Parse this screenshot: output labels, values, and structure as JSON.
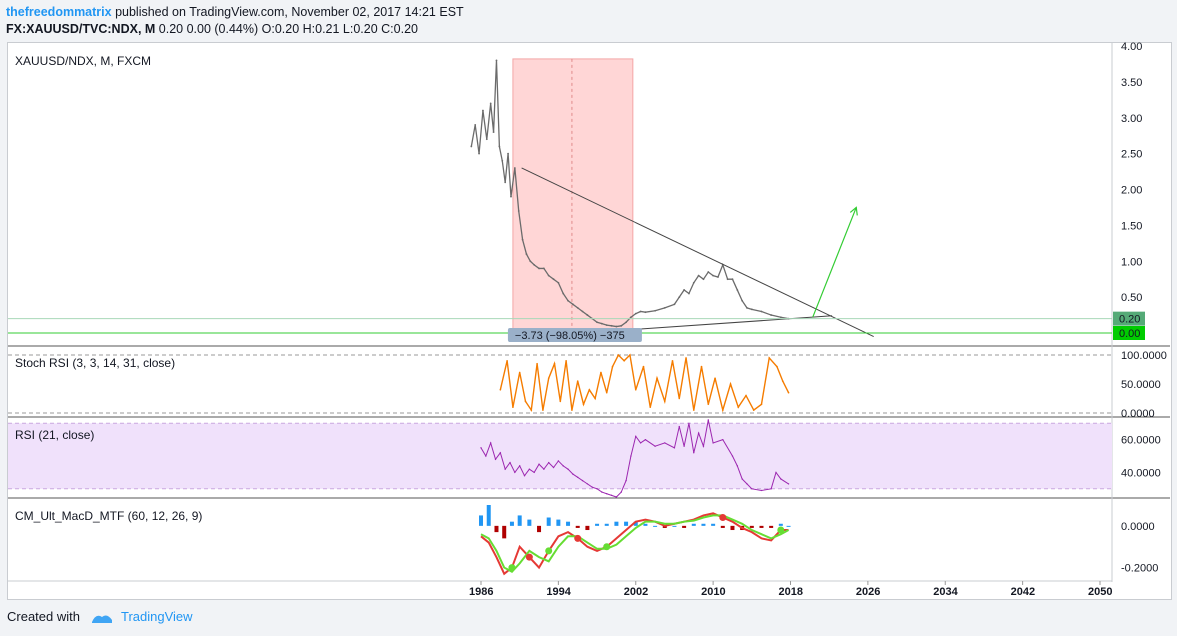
{
  "header": {
    "author": "thefreedommatrix",
    "published": " published on TradingView.com, November 02, 2017 14:21 EST",
    "symbol": "FX:XAUUSD/TVC:NDX, M",
    "ohlc": " 0.20 0.00 (0.44%) O:0.20 H:0.21 L:0.20 C:0.20"
  },
  "footer": {
    "created_with": "Created with",
    "brand": "TradingView"
  },
  "colors": {
    "price_line": "#6b6b6b",
    "range_fill": "#ffd6d6",
    "stoch": "#f57c00",
    "rsi": "#9c27b0",
    "rsi_band": "#f0e1fb",
    "macd_line": "#e53935",
    "macd_signal": "#66dd33",
    "macd_hist_up": "#2196f3",
    "macd_hist_down": "#b00000",
    "support_line": "#33cc33",
    "arrow": "#33cc33",
    "badge_last": "#55aa77",
    "badge_zero": "#00cc00"
  },
  "chart_data": [
    {
      "type": "line",
      "title": "XAUUSD/NDX, M, FXCM",
      "x_ticks": [
        "1986",
        "1994",
        "2002",
        "2010",
        "2018",
        "2026",
        "2034",
        "2042",
        "2050"
      ],
      "y_ticks": [
        "0.00",
        "0.50",
        "1.00",
        "1.50",
        "2.00",
        "2.50",
        "3.00",
        "3.50",
        "4.00"
      ],
      "ylim": [
        0,
        4
      ],
      "xlim": [
        1982.3,
        2050.8
      ],
      "last_value": "0.20",
      "zero_value": "0.00",
      "range_label": "−3.73  (−98.05%)  −375",
      "x": [
        1985.0,
        1985.4,
        1985.8,
        1986.2,
        1986.6,
        1987.0,
        1987.3,
        1987.6,
        1987.9,
        1988.2,
        1988.5,
        1988.8,
        1989.1,
        1989.5,
        1989.9,
        1990.3,
        1990.7,
        1991.1,
        1991.5,
        1992.0,
        1992.5,
        1993.0,
        1993.5,
        1994.0,
        1994.5,
        1995.0,
        1995.5,
        1996.0,
        1996.5,
        1997.0,
        1997.5,
        1998.0,
        1998.5,
        1999.0,
        1999.5,
        2000.0,
        2000.5,
        2001.0,
        2001.5,
        2002.0,
        2002.5,
        2003.0,
        2004.0,
        2005.0,
        2006.0,
        2006.5,
        2007.0,
        2007.5,
        2008.0,
        2008.5,
        2009.0,
        2009.5,
        2010.0,
        2010.5,
        2011.0,
        2011.5,
        2012.0,
        2012.5,
        2013.0,
        2013.5,
        2014.0,
        2015.0,
        2016.0,
        2017.0,
        2017.8
      ],
      "y": [
        2.6,
        2.9,
        2.5,
        3.1,
        2.7,
        3.2,
        2.8,
        3.8,
        2.6,
        2.4,
        2.1,
        2.5,
        1.9,
        2.3,
        1.7,
        1.3,
        1.1,
        1.0,
        0.95,
        0.9,
        0.9,
        0.8,
        0.75,
        0.7,
        0.55,
        0.45,
        0.4,
        0.35,
        0.3,
        0.25,
        0.2,
        0.15,
        0.13,
        0.11,
        0.1,
        0.09,
        0.1,
        0.15,
        0.22,
        0.27,
        0.3,
        0.29,
        0.31,
        0.35,
        0.4,
        0.5,
        0.6,
        0.55,
        0.7,
        0.8,
        0.75,
        0.85,
        0.8,
        0.78,
        0.95,
        0.75,
        0.75,
        0.6,
        0.45,
        0.35,
        0.33,
        0.3,
        0.25,
        0.22,
        0.2
      ]
    },
    {
      "type": "line",
      "title": "Stoch RSI (3, 3, 14, 31, close)",
      "y_ticks": [
        "100.0000",
        "50.0000",
        "0.0000"
      ],
      "ylim": [
        0,
        100
      ],
      "x": [
        1988.0,
        1988.7,
        1989.3,
        1990.0,
        1990.6,
        1991.2,
        1991.8,
        1992.4,
        1993.0,
        1993.6,
        1994.2,
        1994.8,
        1995.4,
        1996.0,
        1996.6,
        1997.2,
        1997.8,
        1998.4,
        1999.0,
        1999.6,
        2000.2,
        2000.8,
        2001.4,
        2002.0,
        2002.8,
        2003.5,
        2004.2,
        2005.0,
        2005.8,
        2006.5,
        2007.2,
        2008.0,
        2008.8,
        2009.5,
        2010.2,
        2011.0,
        2011.8,
        2012.6,
        2013.4,
        2014.2,
        2015.0,
        2015.8,
        2016.6,
        2017.2,
        2017.8
      ],
      "y": [
        40,
        90,
        10,
        70,
        20,
        5,
        85,
        5,
        60,
        85,
        20,
        90,
        5,
        55,
        15,
        40,
        25,
        70,
        35,
        80,
        100,
        90,
        100,
        40,
        80,
        10,
        60,
        20,
        90,
        25,
        95,
        5,
        80,
        15,
        60,
        5,
        50,
        10,
        30,
        5,
        15,
        95,
        80,
        55,
        35
      ]
    },
    {
      "type": "area",
      "title": "RSI (21, close)",
      "y_ticks": [
        "60.0000",
        "40.0000"
      ],
      "ylim": [
        25,
        72
      ],
      "band": [
        30,
        70
      ],
      "x": [
        1986.0,
        1986.5,
        1987.0,
        1987.5,
        1988.0,
        1988.5,
        1989.0,
        1989.5,
        1990.0,
        1990.5,
        1991.0,
        1991.5,
        1992.0,
        1992.5,
        1993.0,
        1993.5,
        1994.0,
        1994.5,
        1995.0,
        1995.5,
        1996.0,
        1996.5,
        1997.0,
        1997.5,
        1998.0,
        1998.5,
        1999.0,
        1999.5,
        2000.0,
        2000.5,
        2001.0,
        2001.5,
        2002.0,
        2002.5,
        2003.0,
        2004.0,
        2005.0,
        2006.0,
        2006.5,
        2007.0,
        2007.5,
        2008.0,
        2008.5,
        2009.0,
        2009.5,
        2010.0,
        2011.0,
        2012.0,
        2012.5,
        2013.0,
        2013.5,
        2014.0,
        2015.0,
        2016.0,
        2016.5,
        2017.0,
        2017.8
      ],
      "y": [
        55,
        50,
        58,
        48,
        52,
        42,
        46,
        40,
        44,
        38,
        42,
        40,
        45,
        42,
        46,
        43,
        47,
        44,
        42,
        39,
        37,
        35,
        33,
        31,
        30,
        28,
        27,
        26,
        25,
        28,
        35,
        50,
        62,
        58,
        60,
        56,
        58,
        55,
        68,
        56,
        70,
        52,
        64,
        56,
        72,
        58,
        60,
        50,
        44,
        36,
        33,
        30,
        29,
        30,
        40,
        36,
        33
      ]
    },
    {
      "type": "bar",
      "title": "CM_Ult_MacD_MTF (60, 12, 26, 9)",
      "y_ticks": [
        "0.0000",
        "-0.2000"
      ],
      "ylim": [
        -0.25,
        0.1
      ],
      "x": [
        1986.0,
        1986.8,
        1987.6,
        1988.4,
        1989.2,
        1990.0,
        1991.0,
        1992.0,
        1993.0,
        1994.0,
        1995.0,
        1996.0,
        1997.0,
        1998.0,
        1999.0,
        2000.0,
        2001.0,
        2002.0,
        2003.0,
        2004.0,
        2005.0,
        2006.0,
        2007.0,
        2008.0,
        2009.0,
        2010.0,
        2011.0,
        2012.0,
        2013.0,
        2014.0,
        2015.0,
        2016.0,
        2017.0,
        2017.8
      ],
      "macd": [
        -0.05,
        -0.08,
        -0.15,
        -0.23,
        -0.2,
        -0.1,
        -0.15,
        -0.2,
        -0.12,
        -0.05,
        -0.03,
        -0.06,
        -0.1,
        -0.12,
        -0.1,
        -0.06,
        -0.02,
        0.02,
        0.03,
        0.02,
        0.0,
        0.01,
        0.02,
        0.03,
        0.05,
        0.06,
        0.04,
        0.02,
        -0.01,
        -0.03,
        -0.06,
        -0.07,
        -0.02,
        -0.02
      ],
      "signal": [
        -0.04,
        -0.06,
        -0.12,
        -0.2,
        -0.22,
        -0.18,
        -0.12,
        -0.15,
        -0.17,
        -0.1,
        -0.05,
        -0.05,
        -0.08,
        -0.11,
        -0.11,
        -0.09,
        -0.05,
        -0.01,
        0.02,
        0.02,
        0.01,
        0.01,
        0.02,
        0.025,
        0.04,
        0.05,
        0.05,
        0.03,
        0.01,
        -0.02,
        -0.04,
        -0.06,
        -0.04,
        -0.02
      ],
      "hist": [
        0.05,
        0.1,
        -0.03,
        -0.06,
        0.02,
        0.05,
        0.03,
        -0.03,
        0.04,
        0.03,
        0.02,
        -0.01,
        -0.02,
        0.01,
        0.01,
        0.02,
        0.02,
        0.02,
        0.01,
        0.0,
        -0.01,
        0.0,
        -0.01,
        0.01,
        0.01,
        0.01,
        -0.01,
        -0.02,
        -0.02,
        -0.01,
        -0.01,
        -0.01,
        0.01,
        0.0
      ]
    }
  ]
}
